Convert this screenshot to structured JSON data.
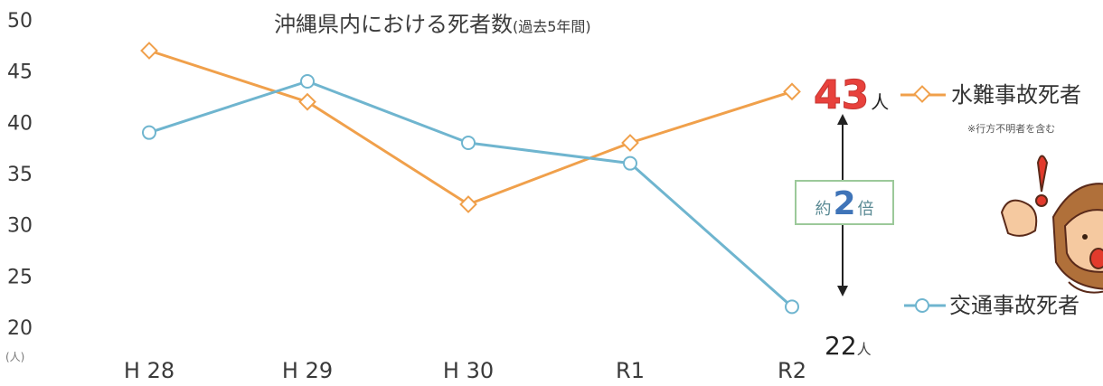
{
  "chart_data": {
    "type": "line",
    "title": "沖縄県内における死者数",
    "subtitle": "(過去5年間)",
    "y_unit": "(人)",
    "categories": [
      "H 28",
      "H 29",
      "H 30",
      "R1",
      "R2"
    ],
    "ylim": [
      20,
      50
    ],
    "yticks": [
      "50",
      "45",
      "40",
      "35",
      "30",
      "25",
      "20"
    ],
    "series": [
      {
        "name": "水難事故死者",
        "color": "#f0a04b",
        "values": [
          47,
          42,
          32,
          38,
          43
        ]
      },
      {
        "name": "交通事故死者",
        "color": "#6fb5cf",
        "values": [
          39,
          44,
          38,
          36,
          22
        ]
      }
    ],
    "grid": false,
    "legend_position": "right"
  },
  "annotations": {
    "drowning_value": "43",
    "drowning_unit": "人",
    "traffic_value": "22",
    "traffic_unit": "人",
    "ratio_prefix": "約",
    "ratio_number": "2",
    "ratio_suffix": "倍",
    "drowning_note": "※行方不明者を含む"
  }
}
